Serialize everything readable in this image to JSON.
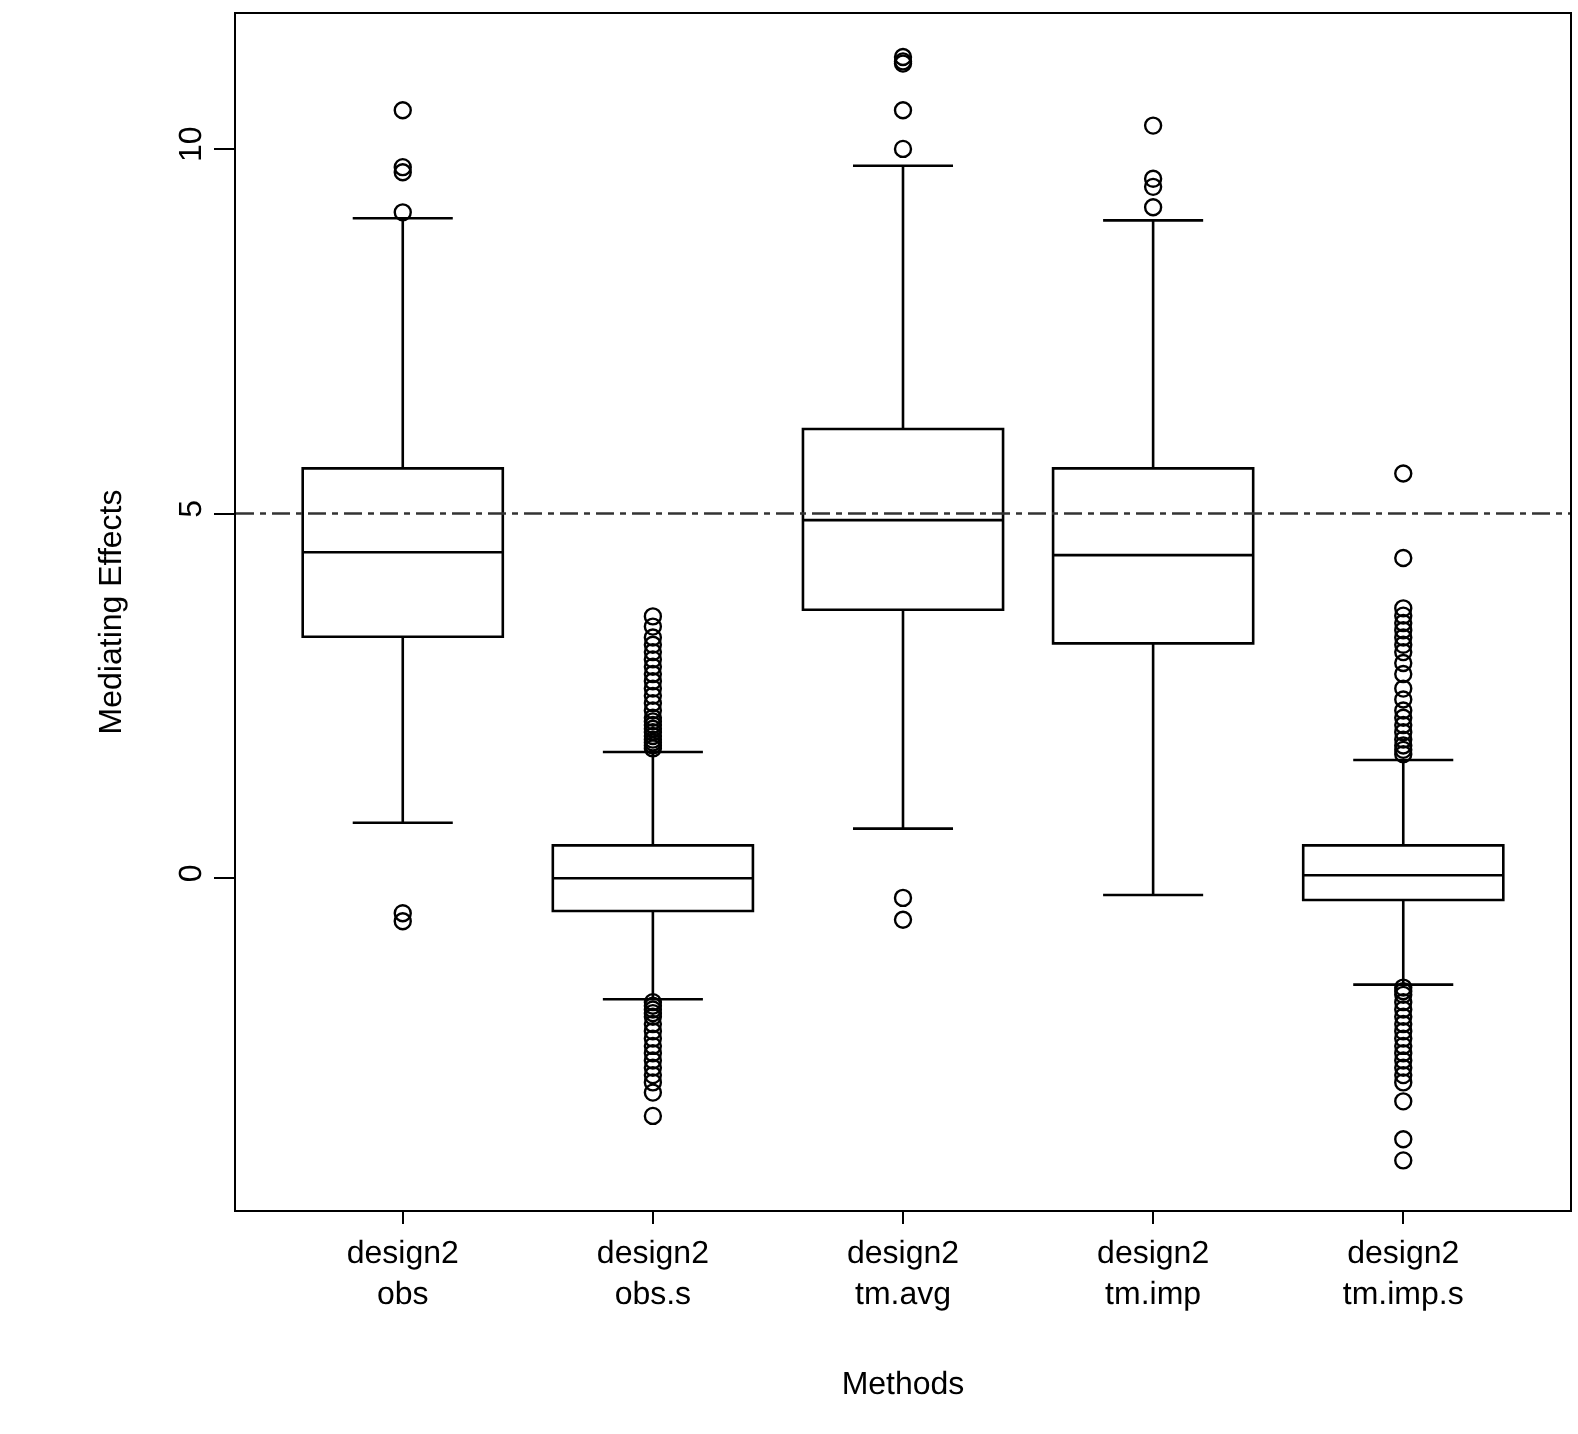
{
  "chart_data": {
    "type": "box",
    "xlabel": "Methods",
    "ylabel": "Mediating Effects",
    "categories": [
      "design2\nobs",
      "design2\nobs.s",
      "design2\ntm.avg",
      "design2\ntm.imp",
      "design2\ntm.imp.s"
    ],
    "boxes": [
      {
        "low": 0.76,
        "q1": 3.31,
        "median": 4.47,
        "q3": 5.62,
        "high": 9.05,
        "outliers": [
          10.53,
          9.75,
          9.68,
          9.13,
          -0.48,
          -0.59
        ]
      },
      {
        "low": -1.66,
        "q1": -0.45,
        "median": 0,
        "q3": 0.45,
        "high": 1.73,
        "outliers": [
          1.78,
          1.82,
          1.86,
          1.9,
          1.95,
          2.0,
          2.05,
          2.1,
          2.15,
          2.2,
          2.3,
          2.4,
          2.5,
          2.6,
          2.7,
          2.8,
          2.9,
          3.0,
          3.1,
          3.2,
          3.3,
          3.45,
          3.59,
          -1.7,
          -1.75,
          -1.8,
          -1.85,
          -1.9,
          -2.0,
          -2.1,
          -2.2,
          -2.3,
          -2.4,
          -2.5,
          -2.6,
          -2.7,
          -2.8,
          -2.94,
          -3.26
        ]
      },
      {
        "low": 0.68,
        "q1": 3.68,
        "median": 4.91,
        "q3": 6.16,
        "high": 9.77,
        "outliers": [
          11.26,
          11.2,
          11.17,
          10.53,
          10.0,
          -0.27,
          -0.57
        ]
      },
      {
        "low": -0.23,
        "q1": 3.22,
        "median": 4.43,
        "q3": 5.62,
        "high": 9.02,
        "outliers": [
          10.32,
          9.59,
          9.48,
          9.2
        ]
      },
      {
        "low": -1.46,
        "q1": -0.3,
        "median": 0.04,
        "q3": 0.45,
        "high": 1.62,
        "outliers": [
          1.7,
          1.76,
          1.82,
          1.9,
          2.0,
          2.1,
          2.2,
          2.3,
          2.45,
          2.6,
          2.8,
          2.95,
          3.1,
          3.2,
          3.3,
          3.4,
          3.5,
          3.6,
          3.7,
          4.39,
          5.55,
          -1.5,
          -1.55,
          -1.6,
          -1.7,
          -1.8,
          -1.9,
          -2.0,
          -2.1,
          -2.2,
          -2.3,
          -2.4,
          -2.5,
          -2.6,
          -2.7,
          -2.8,
          -3.06,
          -3.58,
          -3.87
        ]
      }
    ],
    "ylim": [
      -4.55,
      11.85
    ],
    "yticks": [
      0,
      5,
      10
    ],
    "ref_lines": [
      {
        "axis": "y",
        "value": 5,
        "line_style": "dashdot"
      }
    ],
    "marker": "circle"
  }
}
